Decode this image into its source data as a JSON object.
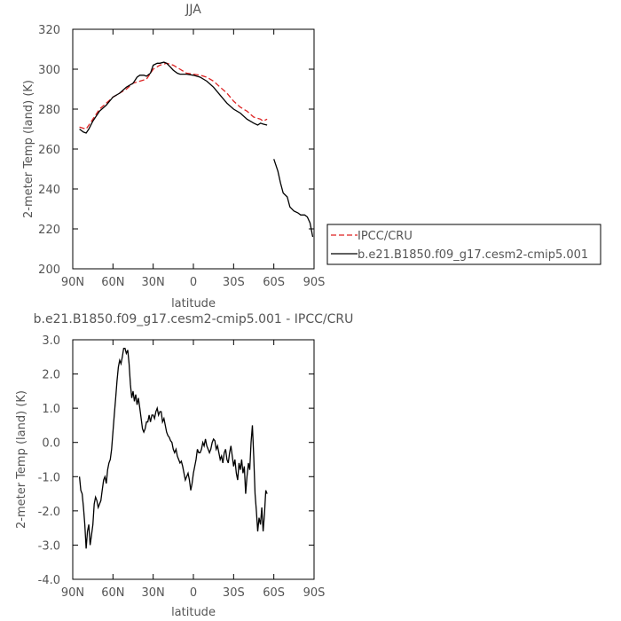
{
  "chart_data": [
    {
      "type": "line",
      "title": "JJA",
      "xlabel": "latitude",
      "ylabel": "2-meter Temp (land) (K)",
      "xlim": [
        90,
        -90
      ],
      "ylim": [
        200,
        320
      ],
      "x_ticks": [
        90,
        60,
        30,
        0,
        -30,
        -60,
        -90
      ],
      "x_tick_labels": [
        "90N",
        "60N",
        "30N",
        "0",
        "30S",
        "60S",
        "90S"
      ],
      "y_ticks": [
        200,
        220,
        240,
        260,
        280,
        300,
        320
      ],
      "y_tick_labels": [
        "200",
        "220",
        "240",
        "260",
        "280",
        "300",
        "320"
      ],
      "legend": {
        "placement": "right"
      },
      "series": [
        {
          "name": "IPCC/CRU",
          "color": "#dd2222",
          "dash": true,
          "x": [
            85,
            80,
            75,
            70,
            65,
            60,
            55,
            50,
            45,
            40,
            35,
            30,
            25,
            20,
            15,
            10,
            5,
            0,
            -5,
            -10,
            -15,
            -20,
            -25,
            -30,
            -35,
            -40,
            -45,
            -50,
            -52,
            -55
          ],
          "y": [
            271,
            270,
            275,
            280,
            283,
            286,
            288,
            290,
            293,
            294,
            295,
            300,
            302,
            303,
            302,
            300,
            298,
            297.5,
            297,
            296,
            294,
            291,
            288,
            284,
            281,
            279,
            276,
            275,
            274,
            275
          ]
        },
        {
          "name": "b.e21.B1850.f09_g17.cesm2-cmip5.001",
          "color": "#000000",
          "dash": false,
          "x": [
            85,
            82,
            80,
            78,
            75,
            72,
            70,
            65,
            60,
            55,
            50,
            45,
            42,
            40,
            37,
            35,
            32,
            30,
            27,
            25,
            22,
            20,
            17,
            15,
            12,
            10,
            5,
            0,
            -5,
            -10,
            -15,
            -20,
            -25,
            -30,
            -35,
            -40,
            -45,
            -48,
            -50,
            -52,
            -55,
            null,
            -60,
            -63,
            -65,
            -67,
            -70,
            -72,
            -75,
            -78,
            -80,
            -83,
            -85,
            -87,
            -89
          ],
          "y": [
            270,
            268.5,
            268,
            270,
            274,
            277,
            279,
            282,
            286,
            288,
            291,
            293,
            296,
            297,
            297,
            296.5,
            298,
            302,
            303,
            303,
            303.5,
            303,
            301,
            299.5,
            298,
            297.5,
            297.5,
            297,
            296,
            294,
            291,
            287,
            283,
            280,
            278,
            275,
            273,
            272,
            273,
            272.5,
            272,
            null,
            255,
            249,
            243,
            238,
            236,
            231,
            229,
            228,
            227,
            227,
            226,
            223,
            216
          ]
        }
      ]
    },
    {
      "type": "line",
      "title": "b.e21.B1850.f09_g17.cesm2-cmip5.001  -  IPCC/CRU",
      "xlabel": "latitude",
      "ylabel": "2-meter Temp (land) (K)",
      "xlim": [
        90,
        -90
      ],
      "ylim": [
        -4.0,
        3.0
      ],
      "x_ticks": [
        90,
        60,
        30,
        0,
        -30,
        -60,
        -90
      ],
      "x_tick_labels": [
        "90N",
        "60N",
        "30N",
        "0",
        "30S",
        "60S",
        "90S"
      ],
      "y_ticks": [
        -4,
        -3,
        -2,
        -1,
        0,
        1,
        2,
        3
      ],
      "y_tick_labels": [
        "-4.0",
        "-3.0",
        "-2.0",
        "-1.0",
        "0.0",
        "1.0",
        "2.0",
        "3.0"
      ],
      "series": [
        {
          "color": "#000000",
          "x": [
            85,
            84,
            83,
            82,
            81,
            80,
            79,
            78,
            77,
            76,
            75,
            74,
            73,
            72,
            71,
            70,
            69,
            68,
            67,
            66,
            65,
            64,
            63,
            62,
            61,
            60,
            59,
            58,
            57,
            56,
            55,
            54,
            53,
            52,
            51,
            50,
            49,
            48,
            47,
            46,
            45,
            44,
            43,
            42,
            41,
            40,
            39,
            38,
            37,
            36,
            35,
            34,
            33,
            32,
            31,
            30,
            29,
            28,
            27,
            26,
            25,
            24,
            23,
            22,
            21,
            20,
            19,
            18,
            17,
            16,
            15,
            14,
            13,
            12,
            11,
            10,
            9,
            8,
            7,
            6,
            5,
            4,
            3,
            2,
            1,
            0,
            -1,
            -2,
            -3,
            -4,
            -5,
            -6,
            -7,
            -8,
            -9,
            -10,
            -11,
            -12,
            -13,
            -14,
            -15,
            -16,
            -17,
            -18,
            -19,
            -20,
            -21,
            -22,
            -23,
            -24,
            -25,
            -26,
            -27,
            -28,
            -29,
            -30,
            -31,
            -32,
            -33,
            -34,
            -35,
            -36,
            -37,
            -38,
            -39,
            -40,
            -41,
            -42,
            -43,
            -44,
            -45,
            -46,
            -47,
            -48,
            -49,
            -50,
            -51,
            -52,
            -53,
            -54,
            -55
          ],
          "y": [
            -1.0,
            -1.4,
            -1.5,
            -1.9,
            -2.4,
            -3.1,
            -2.6,
            -2.4,
            -3.0,
            -2.7,
            -2.4,
            -1.8,
            -1.6,
            -1.7,
            -1.9,
            -1.8,
            -1.7,
            -1.4,
            -1.1,
            -1.0,
            -1.2,
            -0.8,
            -0.6,
            -0.5,
            -0.2,
            0.3,
            0.8,
            1.3,
            1.8,
            2.2,
            2.4,
            2.3,
            2.5,
            2.75,
            2.75,
            2.6,
            2.7,
            2.3,
            1.7,
            1.3,
            1.5,
            1.2,
            1.4,
            1.1,
            1.3,
            1.0,
            0.7,
            0.4,
            0.3,
            0.4,
            0.6,
            0.6,
            0.8,
            0.6,
            0.8,
            0.8,
            0.7,
            0.9,
            1.0,
            0.8,
            0.9,
            0.9,
            0.6,
            0.7,
            0.5,
            0.3,
            0.2,
            0.15,
            0.05,
            0.0,
            -0.2,
            -0.3,
            -0.2,
            -0.4,
            -0.5,
            -0.6,
            -0.55,
            -0.7,
            -0.9,
            -1.1,
            -1.0,
            -0.9,
            -1.1,
            -1.4,
            -1.2,
            -0.9,
            -0.7,
            -0.5,
            -0.2,
            -0.3,
            -0.3,
            -0.2,
            0.0,
            -0.1,
            0.1,
            -0.1,
            -0.2,
            -0.3,
            -0.2,
            0.0,
            0.1,
            0.05,
            -0.2,
            -0.1,
            -0.3,
            -0.5,
            -0.4,
            -0.6,
            -0.3,
            -0.2,
            -0.5,
            -0.6,
            -0.3,
            -0.1,
            -0.4,
            -0.7,
            -0.5,
            -0.9,
            -1.1,
            -0.6,
            -0.8,
            -0.5,
            -0.9,
            -0.7,
            -1.5,
            -1.0,
            -0.6,
            -0.8,
            0.0,
            0.5,
            -0.4,
            -1.5,
            -2.0,
            -2.6,
            -2.2,
            -2.4,
            -1.9,
            -2.6,
            -2.1,
            -1.4,
            -1.5
          ]
        }
      ]
    }
  ]
}
